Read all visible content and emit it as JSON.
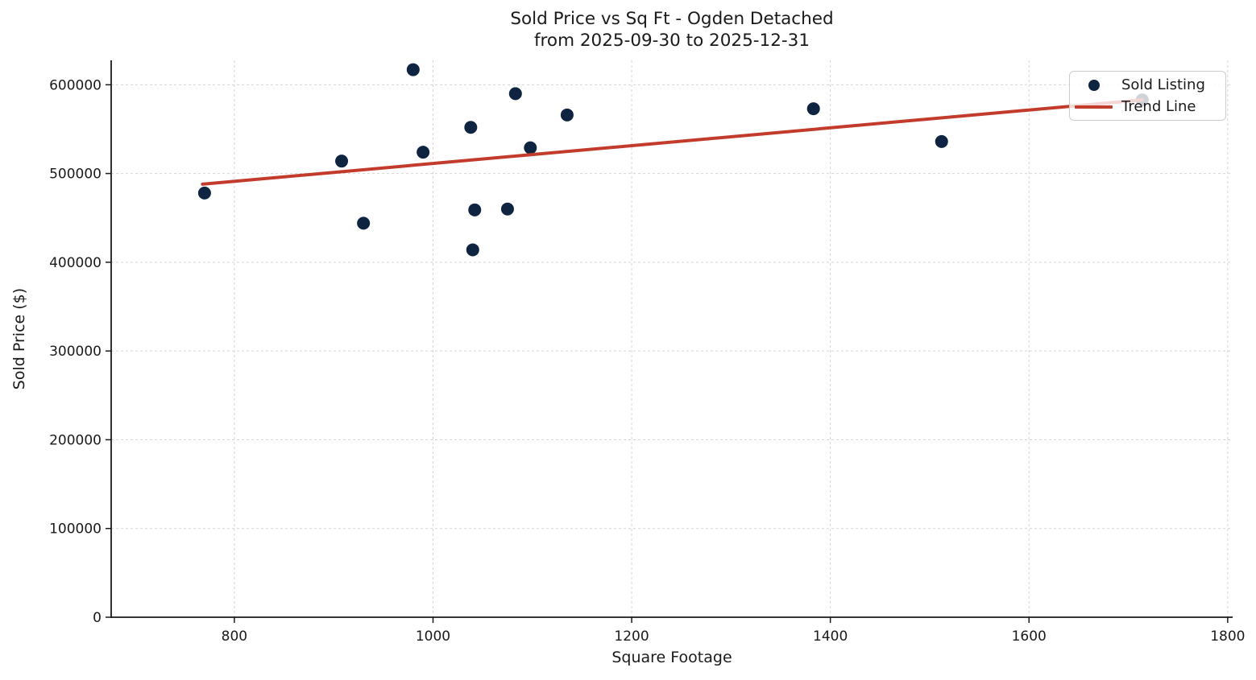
{
  "figure": {
    "title_line1": "Sold Price vs Sq Ft - Ogden Detached",
    "title_line2": "from 2025-09-30 to 2025-12-31",
    "xlabel": "Square Footage",
    "ylabel": "Sold Price ($)"
  },
  "chart_data": {
    "type": "scatter",
    "title": "Sold Price vs Sq Ft - Ogden Detached\nfrom 2025-09-30 to 2025-12-31",
    "xlabel": "Square Footage",
    "ylabel": "Sold Price ($)",
    "xlim": [
      676,
      1805
    ],
    "ylim": [
      0,
      627500
    ],
    "x_ticks": [
      800,
      1000,
      1200,
      1400,
      1600,
      1800
    ],
    "y_ticks": [
      0,
      100000,
      200000,
      300000,
      400000,
      500000,
      600000
    ],
    "grid": true,
    "grid_style": "dashed",
    "legend_position": "upper right",
    "series": [
      {
        "name": "Sold Listing",
        "type": "scatter",
        "color": "#0f2441",
        "marker_radius": 8,
        "points": [
          [
            770,
            478000
          ],
          [
            908,
            514000
          ],
          [
            930,
            444000
          ],
          [
            980,
            617000
          ],
          [
            990,
            524000
          ],
          [
            1038,
            552000
          ],
          [
            1040,
            414000
          ],
          [
            1042,
            459000
          ],
          [
            1075,
            460000
          ],
          [
            1083,
            590000
          ],
          [
            1098,
            529000
          ],
          [
            1135,
            566000
          ],
          [
            1383,
            573000
          ],
          [
            1512,
            536000
          ],
          [
            1714,
            583000
          ]
        ]
      },
      {
        "name": "Trend Line",
        "type": "line",
        "color": "#c23b2b",
        "line_width": 4,
        "points": [
          [
            768,
            488000
          ],
          [
            1714,
            583000
          ]
        ]
      }
    ],
    "legend": [
      {
        "label": "Sold Listing",
        "marker": "dot",
        "color": "#0f2441"
      },
      {
        "label": "Trend Line",
        "marker": "line",
        "color": "#c23b2b"
      }
    ],
    "colors": {
      "scatter": "#0f2441",
      "trend": "#c23b2b",
      "grid": "#d4d4d4",
      "spine": "#1a1a1a",
      "text": "#1a1a1a",
      "legend_border": "#cccccc"
    }
  }
}
